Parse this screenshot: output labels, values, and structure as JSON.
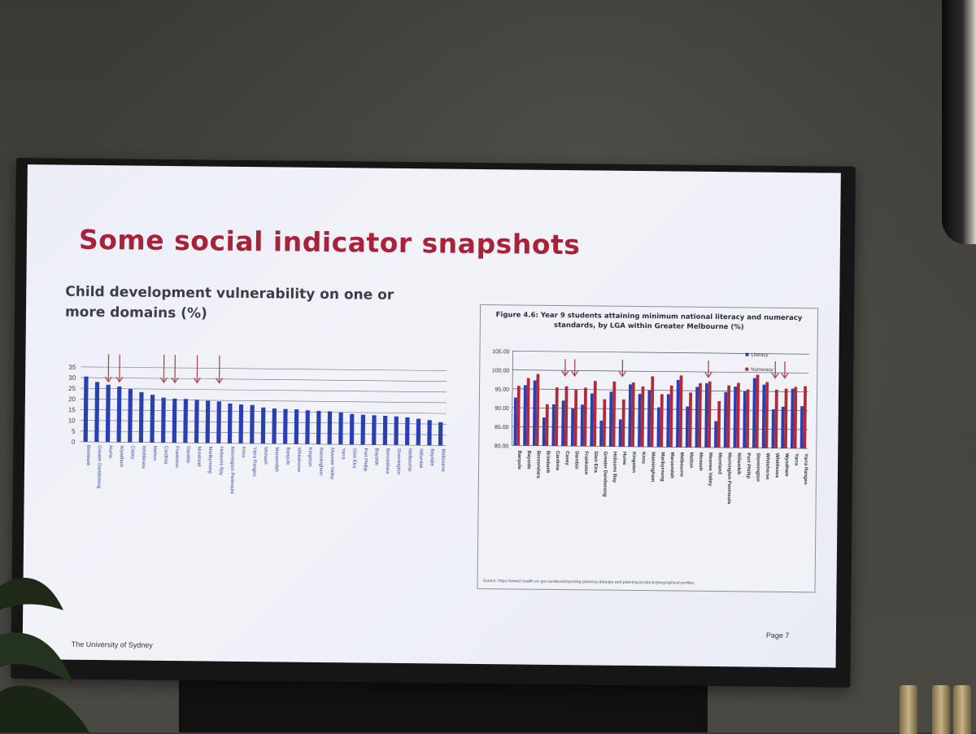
{
  "slide": {
    "title": "Some social indicator snapshots",
    "footer_left": "The University of Sydney",
    "footer_right": "Page 7"
  },
  "chart_data": [
    {
      "type": "bar",
      "title": "Child development vulnerability on one or more domains (%)",
      "ylim": [
        0,
        35
      ],
      "yticks": [
        "0",
        "5",
        "10",
        "15",
        "20",
        "25",
        "30",
        "35"
      ],
      "grid": true,
      "bar_color": "#2a3fb0",
      "arrow_color": "#b04a52",
      "categories": [
        "Brimbank",
        "Greater Dandenong",
        "Hume",
        "Wyndham",
        "Casey",
        "Whittlesea",
        "Melton",
        "Cardinia",
        "Frankston",
        "Darebin",
        "Moreland",
        "Maribyrnong",
        "Hobsons Bay",
        "Mornington Peninsula",
        "Knox",
        "Yarra Ranges",
        "Monash",
        "Maroondah",
        "Banyule",
        "Whitehorse",
        "Kingston",
        "Manningham",
        "Moonee Valley",
        "Yarra",
        "Glen Eira",
        "Port Phillip",
        "Bayside",
        "Boroondara",
        "Stonnington",
        "Melbourne",
        "Nillumbik",
        "Bayside",
        "Melbourne"
      ],
      "values": [
        30.5,
        28.0,
        26.8,
        26.0,
        24.9,
        23.5,
        22.3,
        21.0,
        20.6,
        20.5,
        20.2,
        19.8,
        19.5,
        18.6,
        18.2,
        18.0,
        16.9,
        16.5,
        16.3,
        16.2,
        15.8,
        15.6,
        15.4,
        15.0,
        14.3,
        14.0,
        13.8,
        13.6,
        13.4,
        13.0,
        12.4,
        11.8,
        10.9
      ],
      "highlighted_index": [
        2,
        3,
        7,
        8,
        10,
        12
      ]
    },
    {
      "type": "bar",
      "title": "Figure 4.6: Year 9 students attaining minimum national literacy and numeracy standards, by LGA within Greater Melbourne (%)",
      "ylim": [
        80,
        105
      ],
      "yticks": [
        "80.00",
        "85.00",
        "90.00",
        "95.00",
        "100.00",
        "105.00"
      ],
      "grid": true,
      "legend_position": "top-right",
      "categories": [
        "Banyule",
        "Bayside",
        "Boroondara",
        "Brimbank",
        "Cardinia",
        "Casey",
        "Darebin",
        "Frankston",
        "Glen Eira",
        "Greater Dandenong",
        "Hobsons Bay",
        "Hume",
        "Kingston",
        "Knox",
        "Manningham",
        "Maribyrnong",
        "Maroondah",
        "Melbourne",
        "Melton",
        "Monash",
        "Moonee Valley",
        "Moreland",
        "Mornington Peninsula",
        "Nillumbik",
        "Port Phillip",
        "Stonnington",
        "Whitehorse",
        "Whittlesea",
        "Wyndham",
        "Yarra",
        "Yarra Ranges"
      ],
      "series": [
        {
          "name": "Literacy",
          "color": "#2a3fb0",
          "values": [
            92.7,
            96.0,
            97.3,
            87.5,
            91.0,
            92.0,
            90.0,
            91.0,
            94.0,
            86.8,
            94.5,
            87.2,
            96.5,
            94.0,
            95.0,
            90.5,
            94.0,
            97.8,
            90.8,
            96.0,
            97.0,
            87.0,
            94.7,
            96.2,
            95.0,
            98.5,
            96.8,
            90.3,
            91.0,
            95.8,
            91.2
          ]
        },
        {
          "name": "Numeracy",
          "color": "#b02a3a",
          "values": [
            95.8,
            97.9,
            99.0,
            91.0,
            95.5,
            95.8,
            95.0,
            95.5,
            97.3,
            92.5,
            97.2,
            92.5,
            97.0,
            96.0,
            98.7,
            94.0,
            96.3,
            99.0,
            94.5,
            97.0,
            97.5,
            92.3,
            96.5,
            97.2,
            95.5,
            99.4,
            97.5,
            95.5,
            95.8,
            96.3,
            96.5
          ]
        }
      ],
      "highlighted_index": [
        5,
        6,
        11,
        20,
        27,
        28
      ],
      "source": "https://www2.health.vic.gov.au/about/reporting-planning-data/gis-and-planning-products/geographical-profiles"
    }
  ]
}
